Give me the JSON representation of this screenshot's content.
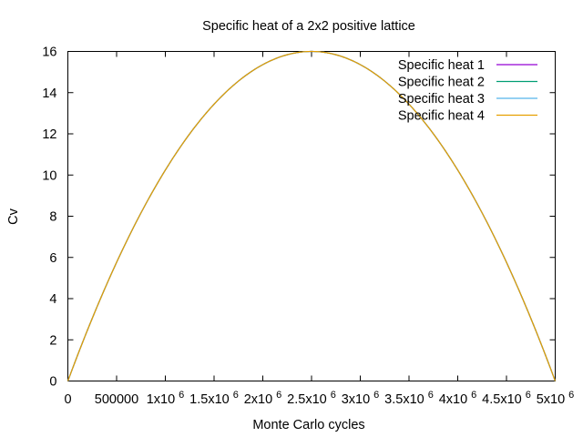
{
  "chart_data": {
    "type": "line",
    "title": "Specific heat of a 2x2 positive lattice",
    "xlabel": "Monte Carlo cycles",
    "ylabel": "Cv",
    "xlim": [
      0,
      5000000
    ],
    "ylim": [
      0,
      16
    ],
    "grid": false,
    "legend_position": "top-right",
    "x_ticks": [
      {
        "value": 0,
        "label": "0"
      },
      {
        "value": 500000,
        "label": "500000"
      },
      {
        "value": 1000000,
        "label": "1x10",
        "exp": "6"
      },
      {
        "value": 1500000,
        "label": "1.5x10",
        "exp": "6"
      },
      {
        "value": 2000000,
        "label": "2x10",
        "exp": "6"
      },
      {
        "value": 2500000,
        "label": "2.5x10",
        "exp": "6"
      },
      {
        "value": 3000000,
        "label": "3x10",
        "exp": "6"
      },
      {
        "value": 3500000,
        "label": "3.5x10",
        "exp": "6"
      },
      {
        "value": 4000000,
        "label": "4x10",
        "exp": "6"
      },
      {
        "value": 4500000,
        "label": "4.5x10",
        "exp": "6"
      },
      {
        "value": 5000000,
        "label": "5x10",
        "exp": "6"
      }
    ],
    "y_ticks": [
      {
        "value": 0,
        "label": "0"
      },
      {
        "value": 2,
        "label": "2"
      },
      {
        "value": 4,
        "label": "4"
      },
      {
        "value": 6,
        "label": "6"
      },
      {
        "value": 8,
        "label": "8"
      },
      {
        "value": 10,
        "label": "10"
      },
      {
        "value": 12,
        "label": "12"
      },
      {
        "value": 14,
        "label": "14"
      },
      {
        "value": 16,
        "label": "16"
      }
    ],
    "x": [
      0,
      250000,
      500000,
      750000,
      1000000,
      1250000,
      1500000,
      1750000,
      2000000,
      2250000,
      2500000,
      2750000,
      3000000,
      3250000,
      3500000,
      3750000,
      4000000,
      4250000,
      4500000,
      4750000,
      5000000
    ],
    "series": [
      {
        "name": "Specific heat 1",
        "color": "#9400d3",
        "values": [
          0,
          3.04,
          5.76,
          8.16,
          10.24,
          12.0,
          13.44,
          14.56,
          15.36,
          15.84,
          16.0,
          15.84,
          15.36,
          14.56,
          13.44,
          12.0,
          10.24,
          8.16,
          5.76,
          3.04,
          0
        ]
      },
      {
        "name": "Specific heat 2",
        "color": "#009e73",
        "values": [
          0,
          3.04,
          5.76,
          8.16,
          10.24,
          12.0,
          13.44,
          14.56,
          15.36,
          15.84,
          16.0,
          15.84,
          15.36,
          14.56,
          13.44,
          12.0,
          10.24,
          8.16,
          5.76,
          3.04,
          0
        ]
      },
      {
        "name": "Specific heat 3",
        "color": "#56b4e9",
        "values": [
          0,
          3.04,
          5.76,
          8.16,
          10.24,
          12.0,
          13.44,
          14.56,
          15.36,
          15.84,
          16.0,
          15.84,
          15.36,
          14.56,
          13.44,
          12.0,
          10.24,
          8.16,
          5.76,
          3.04,
          0
        ]
      },
      {
        "name": "Specific heat 4",
        "color": "#e69f00",
        "values": [
          0,
          3.04,
          5.76,
          8.16,
          10.24,
          12.0,
          13.44,
          14.56,
          15.36,
          15.84,
          16.0,
          15.84,
          15.36,
          14.56,
          13.44,
          12.0,
          10.24,
          8.16,
          5.76,
          3.04,
          0
        ]
      }
    ]
  }
}
